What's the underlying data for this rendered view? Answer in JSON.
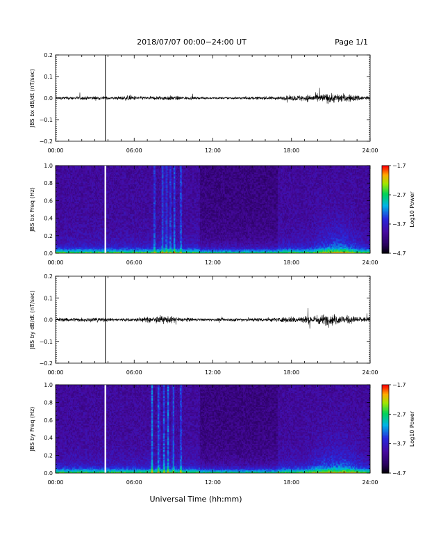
{
  "header": {
    "title": "2018/07/07  00:00−24:00 UT",
    "page": "Page 1/1"
  },
  "xaxis": {
    "label": "Universal Time (hh:mm)",
    "ticks": [
      "00:00",
      "06:00",
      "12:00",
      "18:00",
      "24:00"
    ],
    "range_hours": [
      0,
      24
    ]
  },
  "data_gap": {
    "time_hours": 3.8
  },
  "chart_data": [
    {
      "id": "bx-dbdt",
      "type": "line",
      "ylabel": "JBS bx dB/dt (nT/sec)",
      "ylim": [
        -0.2,
        0.2
      ],
      "yticks": [
        "0.2",
        "0.1",
        "0.0",
        "−0.1",
        "−0.2"
      ],
      "ytick_values": [
        0.2,
        0.1,
        0.0,
        -0.1,
        -0.2
      ],
      "noise_envelope": [
        {
          "t": 0,
          "amp": 0.012
        },
        {
          "t": 3,
          "amp": 0.015
        },
        {
          "t": 4.5,
          "amp": 0.012
        },
        {
          "t": 5.5,
          "amp": 0.02
        },
        {
          "t": 7,
          "amp": 0.012
        },
        {
          "t": 8.5,
          "amp": 0.02
        },
        {
          "t": 9.5,
          "amp": 0.015
        },
        {
          "t": 11,
          "amp": 0.008
        },
        {
          "t": 14,
          "amp": 0.01
        },
        {
          "t": 17,
          "amp": 0.014
        },
        {
          "t": 19.5,
          "amp": 0.03
        },
        {
          "t": 21,
          "amp": 0.04
        },
        {
          "t": 22.5,
          "amp": 0.03
        },
        {
          "t": 24,
          "amp": 0.015
        }
      ]
    },
    {
      "id": "bx-spectrogram",
      "type": "heatmap",
      "ylabel": "JBS bx Freq (Hz)",
      "ylim": [
        0.0,
        1.0
      ],
      "yticks": [
        "1.0",
        "0.8",
        "0.6",
        "0.4",
        "0.2",
        "0.0"
      ],
      "ytick_values": [
        1.0,
        0.8,
        0.6,
        0.4,
        0.2,
        0.0
      ],
      "colorbar": {
        "label": "Log10 Power",
        "range": [
          -4.7,
          -1.7
        ],
        "ticks": [
          "−1.7",
          "−2.7",
          "−3.7",
          "−4.7"
        ],
        "tick_values": [
          -1.7,
          -2.7,
          -3.7,
          -4.7
        ]
      },
      "bright_bands_hours": [
        7.6,
        8.2,
        8.5,
        8.8,
        9.1,
        9.6
      ],
      "active_interval_hours": [
        19.5,
        23.5
      ]
    },
    {
      "id": "by-dbdt",
      "type": "line",
      "ylabel": "JBS by dB/dt (nT/sec)",
      "ylim": [
        -0.2,
        0.2
      ],
      "yticks": [
        "0.2",
        "0.1",
        "0.0",
        "−0.1",
        "−0.2"
      ],
      "ytick_values": [
        0.2,
        0.1,
        0.0,
        -0.1,
        -0.2
      ],
      "noise_envelope": [
        {
          "t": 0,
          "amp": 0.015
        },
        {
          "t": 3,
          "amp": 0.018
        },
        {
          "t": 4.5,
          "amp": 0.012
        },
        {
          "t": 6,
          "amp": 0.015
        },
        {
          "t": 8.5,
          "amp": 0.03
        },
        {
          "t": 9.5,
          "amp": 0.02
        },
        {
          "t": 11,
          "amp": 0.01
        },
        {
          "t": 14,
          "amp": 0.014
        },
        {
          "t": 17,
          "amp": 0.018
        },
        {
          "t": 19.5,
          "amp": 0.035
        },
        {
          "t": 21,
          "amp": 0.045
        },
        {
          "t": 22.5,
          "amp": 0.03
        },
        {
          "t": 24,
          "amp": 0.018
        }
      ]
    },
    {
      "id": "by-spectrogram",
      "type": "heatmap",
      "ylabel": "JBS by Freq (Hz)",
      "ylim": [
        0.0,
        1.0
      ],
      "yticks": [
        "1.0",
        "0.8",
        "0.6",
        "0.4",
        "0.2",
        "0.0"
      ],
      "ytick_values": [
        1.0,
        0.8,
        0.6,
        0.4,
        0.2,
        0.0
      ],
      "colorbar": {
        "label": "Log10 Power",
        "range": [
          -4.7,
          -1.7
        ],
        "ticks": [
          "−1.7",
          "−2.7",
          "−3.7",
          "−4.7"
        ],
        "tick_values": [
          -1.7,
          -2.7,
          -3.7,
          -4.7
        ]
      },
      "bright_bands_hours": [
        7.4,
        7.9,
        8.3,
        8.6,
        9.0,
        9.6
      ],
      "active_interval_hours": [
        19.0,
        23.8
      ]
    }
  ]
}
